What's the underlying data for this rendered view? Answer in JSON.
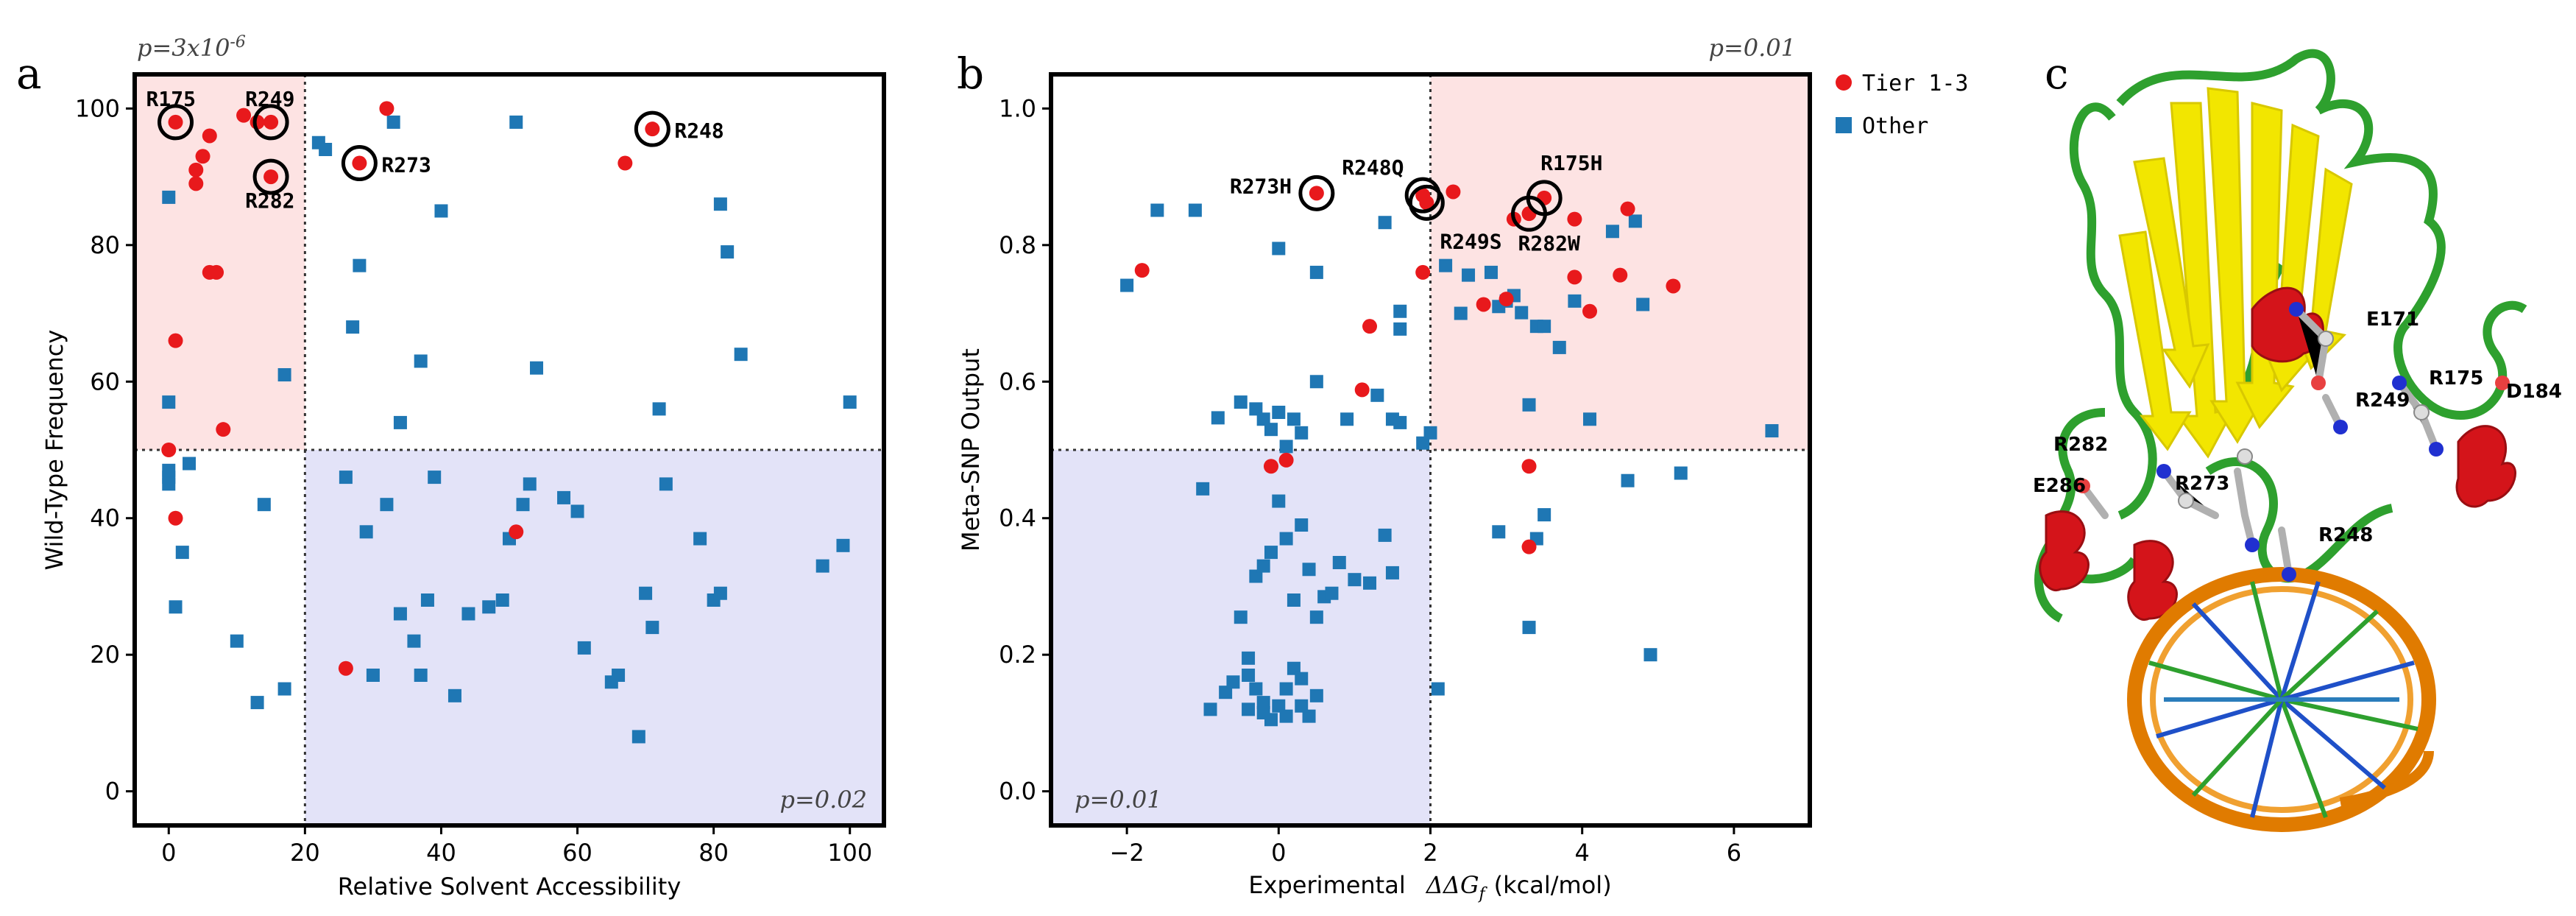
{
  "panel_letters": [
    "a",
    "b",
    "c"
  ],
  "colors": {
    "tier_point": "#e8191c",
    "other_point": "#1f77b4",
    "pink_region": "#fde3e3",
    "blue_region": "#e3e3f8",
    "axis": "#000000"
  },
  "legend": {
    "items": [
      {
        "label": "Tier 1-3",
        "symbol": "circle",
        "color": "#e8191c"
      },
      {
        "label": "Other",
        "symbol": "square",
        "color": "#1f77b4"
      }
    ]
  },
  "chart_data": [
    {
      "id": "a",
      "type": "scatter",
      "xlabel": "Relative Solvent Accessibility",
      "ylabel": "Wild-Type Frequency",
      "xlim": [
        -5,
        105
      ],
      "ylim": [
        -5,
        105
      ],
      "xticks": [
        0,
        20,
        40,
        60,
        80,
        100
      ],
      "yticks": [
        0,
        20,
        40,
        60,
        80,
        100
      ],
      "threshold_x": 20,
      "threshold_y": 50,
      "regions": [
        {
          "x": [
            -5,
            20
          ],
          "y": [
            50,
            105
          ],
          "color": "pink"
        },
        {
          "x": [
            20,
            105
          ],
          "y": [
            -5,
            50
          ],
          "color": "blue"
        }
      ],
      "pvalue_top": {
        "text": "p=3x10",
        "exp": "-6"
      },
      "pvalue_bottom": {
        "text": "p=0.02"
      },
      "series": [
        {
          "name": "Tier 1-3",
          "marker": "circle",
          "x": [
            1,
            15,
            15,
            28,
            71,
            11,
            13,
            6,
            5,
            4,
            4,
            6,
            7,
            32,
            67,
            1,
            8,
            0,
            1,
            26,
            51
          ],
          "y": [
            98,
            98,
            90,
            92,
            97,
            99,
            98,
            96,
            93,
            91,
            89,
            76,
            76,
            100,
            92,
            66,
            53,
            50,
            40,
            18,
            38
          ]
        },
        {
          "name": "Other",
          "marker": "square",
          "x": [
            0,
            0,
            0,
            0,
            0,
            1,
            2,
            3,
            10,
            14,
            13,
            17,
            17,
            22,
            23,
            27,
            28,
            29,
            33,
            37,
            34,
            51,
            54,
            40,
            26,
            30,
            32,
            34,
            36,
            37,
            38,
            39,
            42,
            44,
            47,
            49,
            50,
            52,
            53,
            58,
            60,
            61,
            65,
            66,
            69,
            72,
            73,
            70,
            71,
            78,
            80,
            81,
            81,
            82,
            84,
            96,
            99,
            100
          ],
          "y": [
            87,
            57,
            46,
            47,
            45,
            27,
            35,
            48,
            22,
            42,
            13,
            15,
            61,
            95,
            94,
            68,
            77,
            38,
            98,
            63,
            54,
            98,
            62,
            85,
            46,
            17,
            42,
            26,
            22,
            17,
            28,
            46,
            14,
            26,
            27,
            28,
            37,
            42,
            45,
            43,
            41,
            21,
            16,
            17,
            8,
            56,
            45,
            29,
            24,
            37,
            28,
            29,
            86,
            79,
            64,
            33,
            36,
            57
          ]
        }
      ],
      "annotations": [
        {
          "label": "R175",
          "x": 1,
          "y": 98
        },
        {
          "label": "R249",
          "x": 15,
          "y": 98
        },
        {
          "label": "R282",
          "x": 15,
          "y": 90
        },
        {
          "label": "R273",
          "x": 28,
          "y": 92
        },
        {
          "label": "R248",
          "x": 71,
          "y": 97
        }
      ]
    },
    {
      "id": "b",
      "type": "scatter",
      "xlabel": "Experimental",
      "xlabel_math": "ΔΔG",
      "xlabel_sub": "f",
      "xlabel_unit": "(kcal/mol)",
      "ylabel": "Meta-SNP Output",
      "xlim": [
        -3,
        7
      ],
      "ylim": [
        -0.05,
        1.05
      ],
      "xticks": [
        -2,
        0,
        2,
        4,
        6
      ],
      "yticks": [
        0.0,
        0.2,
        0.4,
        0.6,
        0.8,
        1.0
      ],
      "threshold_x": 2,
      "threshold_y": 0.5,
      "regions": [
        {
          "x": [
            2,
            7
          ],
          "y": [
            0.5,
            1.05
          ],
          "color": "pink"
        },
        {
          "x": [
            -3,
            2
          ],
          "y": [
            -0.05,
            0.5
          ],
          "color": "blue"
        }
      ],
      "pvalue_top": {
        "text": "p=0.01"
      },
      "pvalue_bottom": {
        "text": "p=0.01"
      },
      "series": [
        {
          "name": "Tier 1-3",
          "marker": "circle",
          "x": [
            0.5,
            1.9,
            1.95,
            3.3,
            3.5,
            -1.8,
            2.3,
            3.1,
            3.9,
            4.6,
            1.9,
            1.2,
            1.1,
            2.7,
            3.0,
            3.9,
            4.1,
            4.5,
            5.2,
            0.1,
            -0.1,
            3.3,
            3.3
          ],
          "y": [
            0.876,
            0.873,
            0.862,
            0.846,
            0.869,
            0.763,
            0.878,
            0.838,
            0.838,
            0.853,
            0.76,
            0.681,
            0.588,
            0.713,
            0.721,
            0.753,
            0.703,
            0.756,
            0.74,
            0.485,
            0.476,
            0.476,
            0.358
          ]
        },
        {
          "name": "Other",
          "marker": "square",
          "x": [
            -2.0,
            -1.6,
            -1.1,
            0.0,
            0.5,
            1.4,
            1.6,
            1.6,
            1.9,
            2.2,
            2.4,
            2.5,
            2.8,
            3.0,
            3.1,
            3.2,
            3.3,
            3.4,
            3.5,
            3.7,
            3.9,
            4.4,
            4.7,
            4.8,
            6.5,
            -0.8,
            -0.5,
            -0.3,
            -0.2,
            -0.1,
            0.0,
            0.1,
            0.2,
            0.3,
            0.5,
            0.9,
            1.3,
            1.5,
            1.6,
            2.0,
            2.9,
            3.4,
            4.1,
            4.6,
            5.3,
            4.9,
            3.3,
            2.9,
            3.5,
            2.1,
            -1.0,
            -0.5,
            -0.4,
            -0.3,
            -0.2,
            -0.1,
            0.0,
            0.1,
            0.2,
            0.3,
            0.4,
            0.5,
            0.6,
            0.7,
            0.8,
            1.0,
            1.2,
            1.4,
            1.5,
            -0.9,
            -0.7,
            -0.4,
            -0.3,
            -0.2,
            -0.1,
            0.0,
            0.1,
            0.2,
            0.3,
            0.4,
            0.5,
            -0.6,
            -0.4,
            -0.2,
            0.1,
            0.3
          ],
          "y": [
            0.741,
            0.851,
            0.851,
            0.795,
            0.76,
            0.833,
            0.703,
            0.677,
            0.51,
            0.77,
            0.7,
            0.756,
            0.76,
            0.718,
            0.726,
            0.701,
            0.566,
            0.681,
            0.681,
            0.65,
            0.718,
            0.82,
            0.835,
            0.713,
            0.528,
            0.547,
            0.57,
            0.56,
            0.545,
            0.53,
            0.555,
            0.505,
            0.545,
            0.525,
            0.6,
            0.545,
            0.58,
            0.545,
            0.54,
            0.525,
            0.38,
            0.37,
            0.545,
            0.455,
            0.466,
            0.2,
            0.24,
            0.71,
            0.405,
            0.15,
            0.443,
            0.255,
            0.195,
            0.315,
            0.33,
            0.35,
            0.425,
            0.37,
            0.28,
            0.39,
            0.325,
            0.255,
            0.285,
            0.29,
            0.335,
            0.31,
            0.305,
            0.375,
            0.32,
            0.12,
            0.145,
            0.17,
            0.15,
            0.13,
            0.105,
            0.125,
            0.15,
            0.18,
            0.165,
            0.11,
            0.14,
            0.16,
            0.12,
            0.115,
            0.11,
            0.125
          ]
        }
      ],
      "annotations": [
        {
          "label": "R273H",
          "x": 0.5,
          "y": 0.876
        },
        {
          "label": "R248Q",
          "x": 1.9,
          "y": 0.873
        },
        {
          "label": "R249S",
          "x": 1.95,
          "y": 0.862
        },
        {
          "label": "R175H",
          "x": 3.5,
          "y": 0.869
        },
        {
          "label": "R282W",
          "x": 3.3,
          "y": 0.846
        }
      ]
    }
  ],
  "structure": {
    "residue_labels": [
      "E171",
      "R175",
      "D184",
      "R249",
      "R282",
      "E286",
      "R273",
      "R248"
    ]
  }
}
